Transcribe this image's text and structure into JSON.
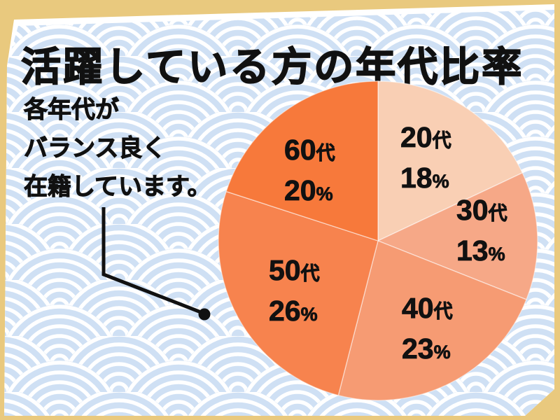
{
  "theme": {
    "frame_border": "#E9C97E",
    "panel": "#FFFFFF",
    "wave_bg": "#CFE0F4",
    "wave_line": "#FFFFFF",
    "ink": "#111111"
  },
  "title": "活躍している方の年代比率",
  "note": {
    "lines": [
      "各年代が",
      "バランス良く",
      "在籍しています。"
    ]
  },
  "chart_data": {
    "type": "pie",
    "title": "活躍している方の年代比率",
    "start": "top",
    "direction": "clockwise",
    "legend_position": "labels-on-slices",
    "categories": [
      "20代",
      "30代",
      "40代",
      "50代",
      "60代"
    ],
    "values": [
      18,
      13,
      23,
      26,
      20
    ],
    "slices": [
      {
        "label": "20代",
        "decade": "20",
        "unit": "代",
        "percent": 18,
        "percent_unit": "%",
        "color": "#F9CFB4"
      },
      {
        "label": "30代",
        "decade": "30",
        "unit": "代",
        "percent": 13,
        "percent_unit": "%",
        "color": "#F6A887"
      },
      {
        "label": "40代",
        "decade": "40",
        "unit": "代",
        "percent": 23,
        "percent_unit": "%",
        "color": "#F69B73"
      },
      {
        "label": "50代",
        "decade": "50",
        "unit": "代",
        "percent": 26,
        "percent_unit": "%",
        "color": "#F7834E"
      },
      {
        "label": "60代",
        "decade": "60",
        "unit": "代",
        "percent": 20,
        "percent_unit": "%",
        "color": "#F7793B"
      }
    ]
  }
}
